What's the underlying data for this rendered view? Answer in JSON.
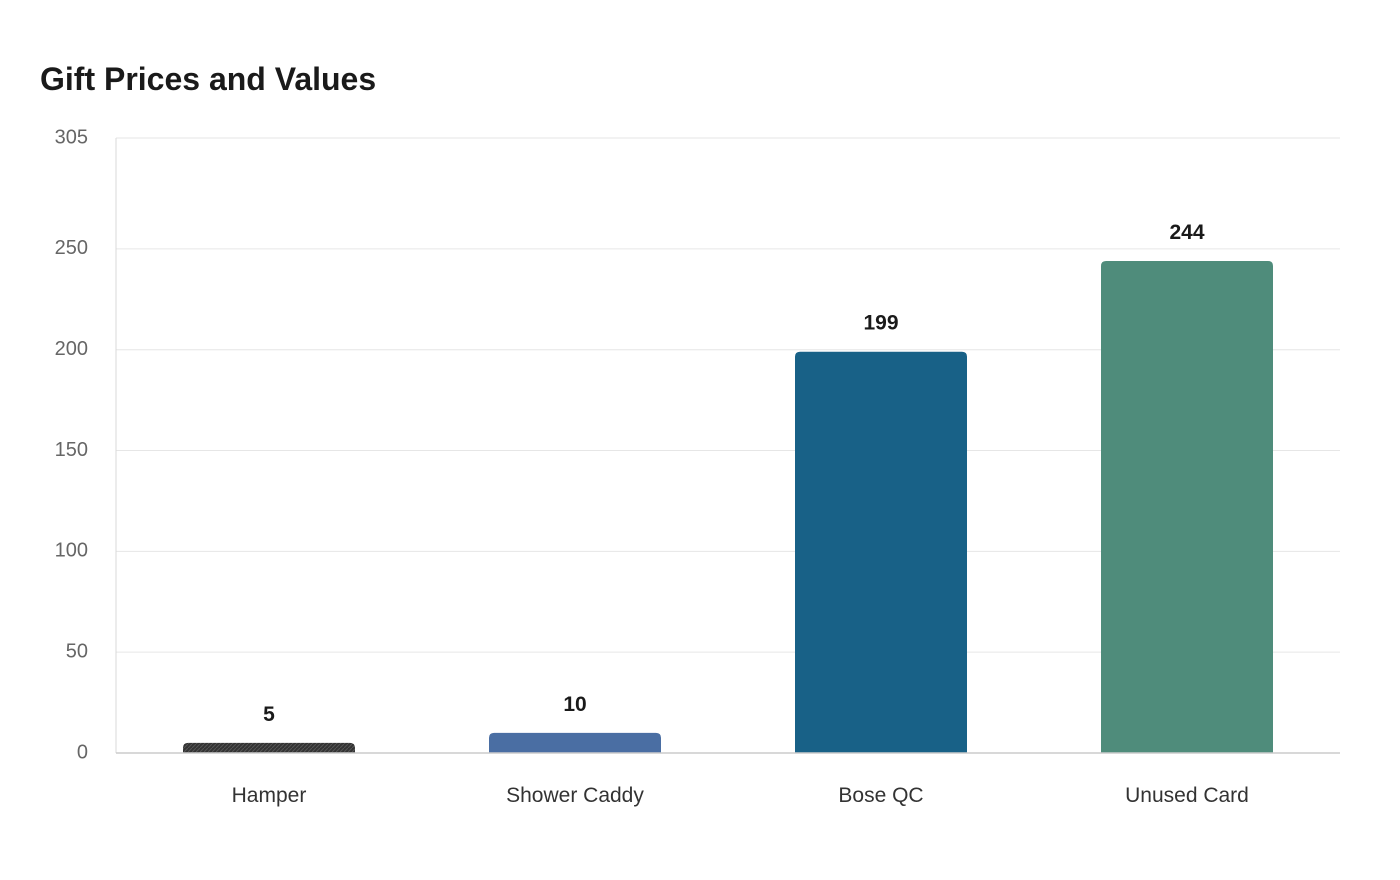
{
  "chart_data": {
    "type": "bar",
    "title": "Gift Prices and Values",
    "xlabel": "",
    "ylabel": "",
    "categories": [
      "Hamper",
      "Shower Caddy",
      "Bose QC",
      "Unused Card"
    ],
    "values": [
      5,
      10,
      199,
      244
    ],
    "data_labels": [
      "5",
      "10",
      "199",
      "244"
    ],
    "colors": [
      "#333333",
      "#4a6ea3",
      "#186187",
      "#4f8c7b"
    ],
    "ylim": [
      0,
      305
    ],
    "yticks": [
      0,
      50,
      100,
      150,
      200,
      250,
      305
    ],
    "ytick_labels": [
      "0",
      "50",
      "100",
      "150",
      "200",
      "250",
      "305"
    ],
    "grid": true,
    "legend": "none"
  }
}
